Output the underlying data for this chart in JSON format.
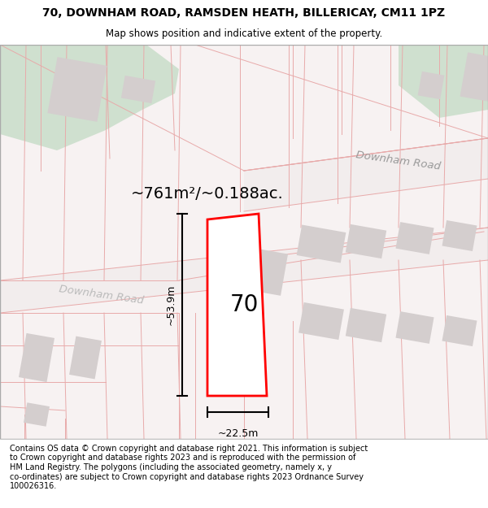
{
  "title": "70, DOWNHAM ROAD, RAMSDEN HEATH, BILLERICAY, CM11 1PZ",
  "subtitle": "Map shows position and indicative extent of the property.",
  "area_label": "~761m²/~0.188ac.",
  "width_label": "~22.5m",
  "height_label": "~53.9m",
  "number_label": "70",
  "road_label": "Downham Road",
  "footer_text": "Contains OS data © Crown copyright and database right 2021. This information is subject\nto Crown copyright and database rights 2023 and is reproduced with the permission of\nHM Land Registry. The polygons (including the associated geometry, namely x, y\nco-ordinates) are subject to Crown copyright and database rights 2023 Ordnance Survey\n100026316.",
  "map_bg": "#f7f2f2",
  "plot_color": "#ff0000",
  "building_color": "#d4cece",
  "cadastral_color": "#e8aaaa",
  "green_color": "#cfe0cf",
  "header_bg": "#ffffff",
  "footer_bg": "#ffffff",
  "figsize": [
    6.0,
    6.25
  ],
  "dpi": 100
}
